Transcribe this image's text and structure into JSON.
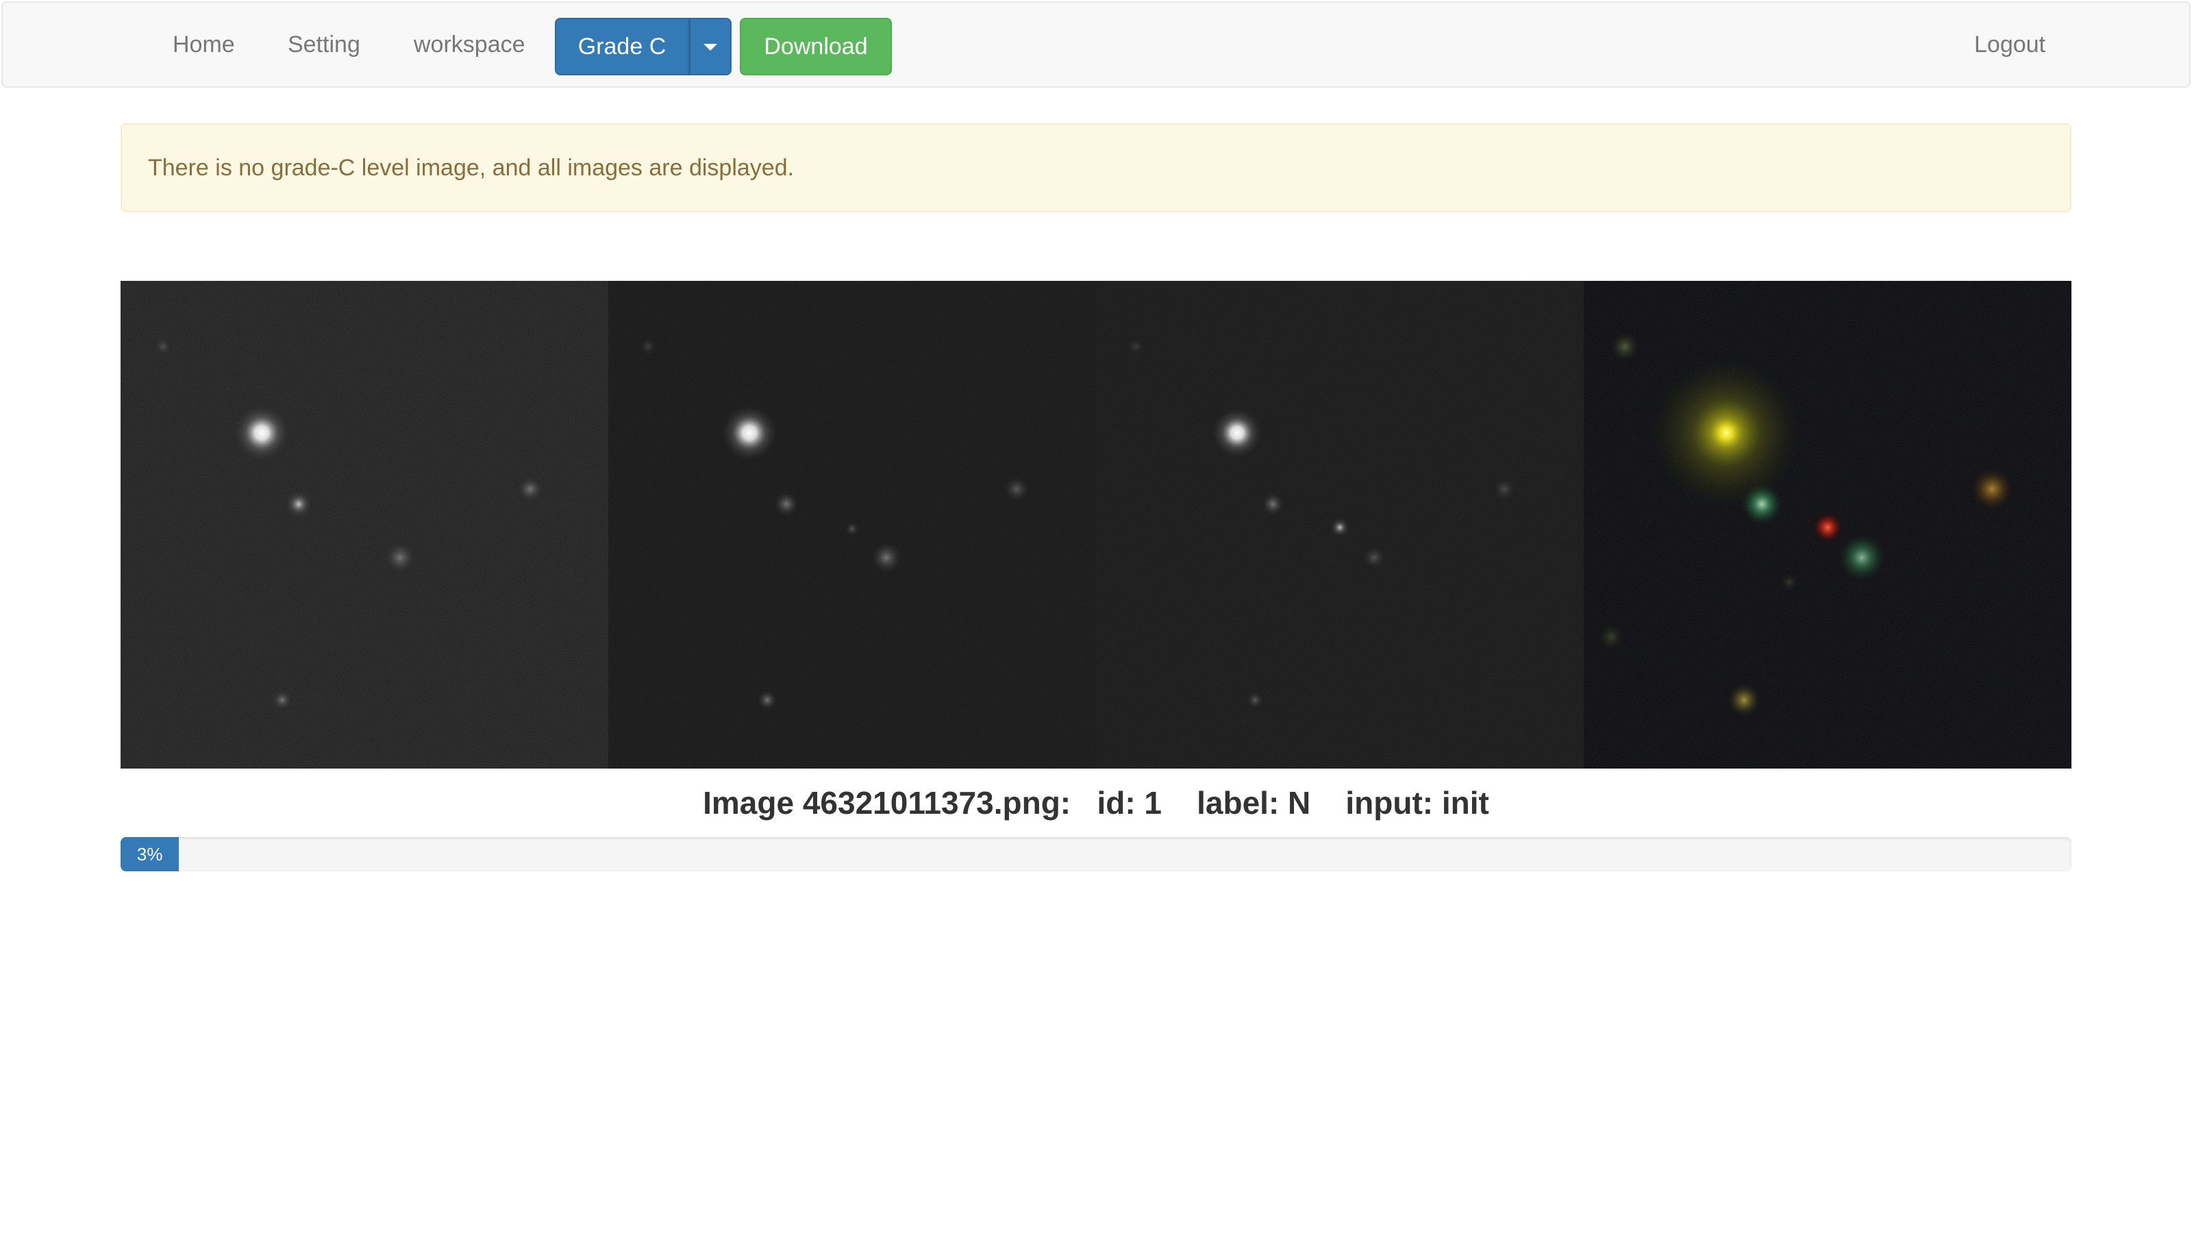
{
  "navbar": {
    "home": "Home",
    "setting": "Setting",
    "workspace": "workspace",
    "grade_button": "Grade C",
    "download_button": "Download",
    "logout": "Logout"
  },
  "alert": {
    "message": "There is no grade-C level image, and all images are displayed."
  },
  "image": {
    "caption": "Image 46321011373.png:   id: 1    label: N    input: init"
  },
  "progress": {
    "value": 0.03,
    "label": "3%"
  },
  "colors": {
    "primary": "#337ab7",
    "success": "#5cb85c",
    "warning_bg": "#fcf8e3",
    "warning_text": "#8a6d3b"
  }
}
